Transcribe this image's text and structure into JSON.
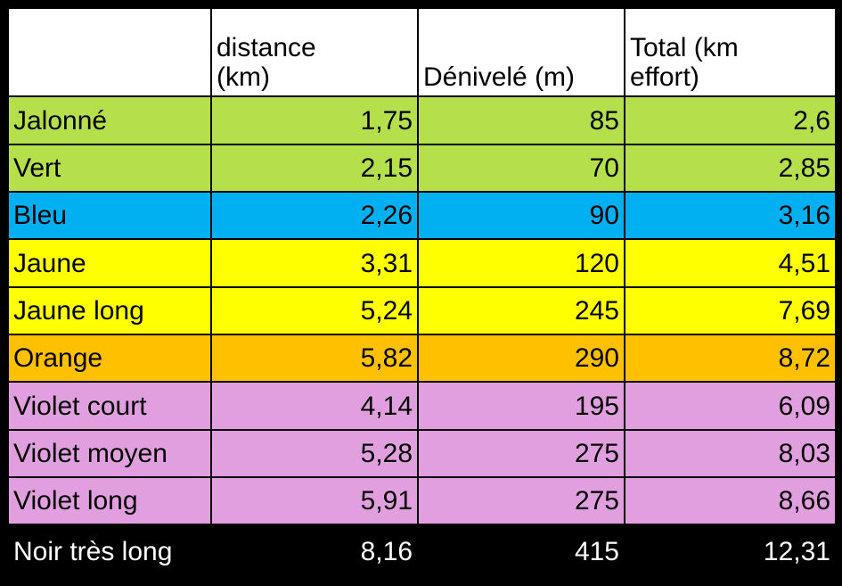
{
  "table": {
    "header": [
      "distance (km)",
      "Dénivelé (m)",
      "Total (km effort)"
    ],
    "rows": [
      {
        "color": "#b5e04b",
        "text_color": "#000000",
        "cells": [
          "Jalonné",
          "1,75",
          "85",
          "2,6"
        ]
      },
      {
        "color": "#b5e04b",
        "text_color": "#000000",
        "cells": [
          "Vert",
          "2,15",
          "70",
          "2,85"
        ]
      },
      {
        "color": "#00b0f0",
        "text_color": "#000000",
        "cells": [
          "Bleu",
          "2,26",
          "90",
          "3,16"
        ]
      },
      {
        "color": "#ffff00",
        "text_color": "#000000",
        "cells": [
          "Jaune",
          "3,31",
          "120",
          "4,51"
        ]
      },
      {
        "color": "#ffff00",
        "text_color": "#000000",
        "cells": [
          "Jaune long",
          "5,24",
          "245",
          "7,69"
        ]
      },
      {
        "color": "#ffc000",
        "text_color": "#000000",
        "cells": [
          "Orange",
          "5,82",
          "290",
          "8,72"
        ]
      },
      {
        "color": "#e29fdf",
        "text_color": "#000000",
        "cells": [
          "Violet court",
          "4,14",
          "195",
          "6,09"
        ]
      },
      {
        "color": "#e29fdf",
        "text_color": "#000000",
        "cells": [
          "Violet moyen",
          "5,28",
          "275",
          "8,03"
        ]
      },
      {
        "color": "#e29fdf",
        "text_color": "#000000",
        "cells": [
          "Violet long",
          "5,91",
          "275",
          "8,66"
        ]
      },
      {
        "color": "#000000",
        "text_color": "#ffffff",
        "cells": [
          "Noir très long",
          "8,16",
          "415",
          "12,31"
        ]
      }
    ]
  }
}
